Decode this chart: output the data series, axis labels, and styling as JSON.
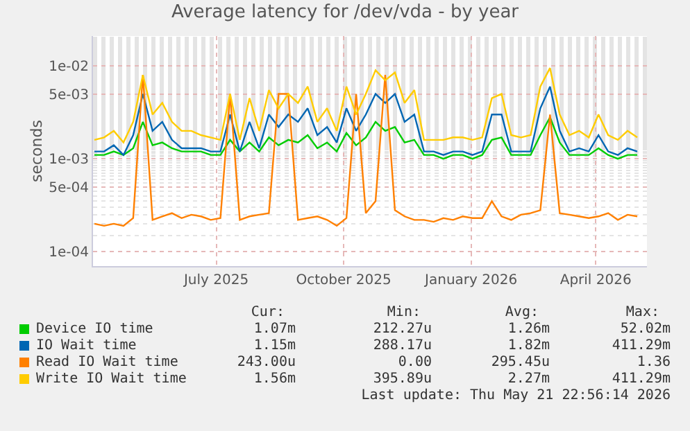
{
  "chart_data": {
    "type": "line",
    "title": "Average latency for /dev/vda - by year",
    "ylabel": "seconds",
    "x": [
      "2025-04-18",
      "2025-04-25",
      "2025-05-02",
      "2025-05-09",
      "2025-05-16",
      "2025-05-23",
      "2025-05-30",
      "2025-06-06",
      "2025-06-13",
      "2025-06-20",
      "2025-06-27",
      "2025-07-04",
      "2025-07-11",
      "2025-07-18",
      "2025-07-25",
      "2025-08-01",
      "2025-08-08",
      "2025-08-15",
      "2025-08-22",
      "2025-08-29",
      "2025-09-05",
      "2025-09-12",
      "2025-09-19",
      "2025-09-26",
      "2025-10-03",
      "2025-10-10",
      "2025-10-17",
      "2025-10-24",
      "2025-10-31",
      "2025-11-07",
      "2025-11-14",
      "2025-11-21",
      "2025-11-28",
      "2025-12-05",
      "2025-12-12",
      "2025-12-19",
      "2025-12-26",
      "2026-01-02",
      "2026-01-09",
      "2026-01-16",
      "2026-01-23",
      "2026-01-30",
      "2026-02-06",
      "2026-02-13",
      "2026-02-20",
      "2026-02-27",
      "2026-03-06",
      "2026-03-13",
      "2026-03-20",
      "2026-03-27",
      "2026-04-03",
      "2026-04-10",
      "2026-04-17",
      "2026-04-24",
      "2026-05-01",
      "2026-05-08",
      "2026-05-15"
    ],
    "series": [
      {
        "name": "Device IO time",
        "color": "#00cc00",
        "values": [
          0.0011,
          0.0011,
          0.0012,
          0.0011,
          0.0013,
          0.0025,
          0.0014,
          0.0015,
          0.0013,
          0.0012,
          0.0012,
          0.0012,
          0.0011,
          0.0011,
          0.0016,
          0.0012,
          0.0015,
          0.0012,
          0.0017,
          0.0014,
          0.0016,
          0.0015,
          0.0018,
          0.0013,
          0.0015,
          0.0012,
          0.0019,
          0.0014,
          0.0017,
          0.0025,
          0.002,
          0.0022,
          0.0015,
          0.0016,
          0.0011,
          0.0011,
          0.001,
          0.0011,
          0.0011,
          0.001,
          0.0011,
          0.0016,
          0.0017,
          0.0011,
          0.0011,
          0.0011,
          0.0018,
          0.0028,
          0.0015,
          0.0011,
          0.0011,
          0.0011,
          0.0013,
          0.0011,
          0.001,
          0.0011,
          0.0011
        ]
      },
      {
        "name": "IO Wait time",
        "color": "#0066b3",
        "values": [
          0.0012,
          0.0012,
          0.0014,
          0.0011,
          0.0018,
          0.005,
          0.002,
          0.0025,
          0.0016,
          0.0013,
          0.0013,
          0.0013,
          0.0012,
          0.0012,
          0.003,
          0.0012,
          0.0025,
          0.0013,
          0.003,
          0.0022,
          0.003,
          0.0025,
          0.0035,
          0.0018,
          0.0022,
          0.0015,
          0.0035,
          0.002,
          0.003,
          0.005,
          0.004,
          0.005,
          0.0025,
          0.003,
          0.0012,
          0.0012,
          0.0011,
          0.0012,
          0.0012,
          0.0011,
          0.0012,
          0.003,
          0.003,
          0.0012,
          0.0012,
          0.0012,
          0.0035,
          0.006,
          0.002,
          0.0012,
          0.0013,
          0.0012,
          0.0018,
          0.0012,
          0.0011,
          0.0013,
          0.0012
        ]
      },
      {
        "name": "Read IO Wait time",
        "color": "#ff8000",
        "values": [
          0.0002,
          0.00019,
          0.0002,
          0.00019,
          0.00023,
          0.008,
          0.00022,
          0.00024,
          0.00026,
          0.00023,
          0.00025,
          0.00024,
          0.00022,
          0.00023,
          0.005,
          0.00022,
          0.00024,
          0.00025,
          0.00026,
          0.005,
          0.005,
          0.00022,
          0.00023,
          0.00024,
          0.00022,
          0.00019,
          0.00023,
          0.005,
          0.00026,
          0.00035,
          0.008,
          0.00028,
          0.00024,
          0.00022,
          0.00022,
          0.00021,
          0.00023,
          0.00022,
          0.00024,
          0.00023,
          0.00023,
          0.00035,
          0.00024,
          0.00022,
          0.00025,
          0.00026,
          0.00028,
          0.003,
          0.00026,
          0.00025,
          0.00024,
          0.00023,
          0.00024,
          0.00026,
          0.00022,
          0.00025,
          0.00024
        ]
      },
      {
        "name": "Write IO Wait time",
        "color": "#ffcc00",
        "values": [
          0.0016,
          0.0017,
          0.002,
          0.0015,
          0.0025,
          0.008,
          0.003,
          0.004,
          0.0025,
          0.002,
          0.002,
          0.0018,
          0.0017,
          0.0016,
          0.005,
          0.0016,
          0.0045,
          0.002,
          0.0055,
          0.0035,
          0.005,
          0.004,
          0.006,
          0.0025,
          0.0035,
          0.002,
          0.006,
          0.003,
          0.005,
          0.009,
          0.007,
          0.0085,
          0.004,
          0.0055,
          0.0016,
          0.0016,
          0.0016,
          0.0017,
          0.0017,
          0.0016,
          0.0017,
          0.0045,
          0.005,
          0.0018,
          0.0017,
          0.0018,
          0.006,
          0.0095,
          0.003,
          0.0018,
          0.002,
          0.0017,
          0.003,
          0.0018,
          0.0016,
          0.002,
          0.0017
        ]
      }
    ],
    "log": true,
    "grid": true,
    "legend": "bottom",
    "marker": "none",
    "line_style": "solid",
    "xlim": [
      "2025-04-17",
      "2026-05-22"
    ],
    "xticks": [
      {
        "value": "2025-07-15",
        "label": "July 2025"
      },
      {
        "value": "2025-10-15",
        "label": "October 2025"
      },
      {
        "value": "2026-01-15",
        "label": "January 2026"
      },
      {
        "value": "2026-04-15",
        "label": "April 2026"
      }
    ],
    "ylim": [
      7e-05,
      0.021
    ],
    "yticks": [
      {
        "value": 0.0001,
        "label": "1e-04"
      },
      {
        "value": 0.0005,
        "label": "5e-04"
      },
      {
        "value": 0.001,
        "label": "1e-03"
      },
      {
        "value": 0.005,
        "label": "5e-03"
      },
      {
        "value": 0.01,
        "label": "1e-02"
      }
    ],
    "annotations": [
      "Cur:",
      "Min:",
      "Avg:",
      "Max:",
      "1.07m",
      "212.27u",
      "1.26m",
      "52.02m",
      "1.15m",
      "288.17u",
      "1.82m",
      "411.29m",
      "243.00u",
      "0.00",
      "295.45u",
      "1.36",
      "1.56m",
      "395.89u",
      "2.27m",
      "411.29m",
      "Last update: Thu May 21 22:56:14 2026"
    ]
  }
}
